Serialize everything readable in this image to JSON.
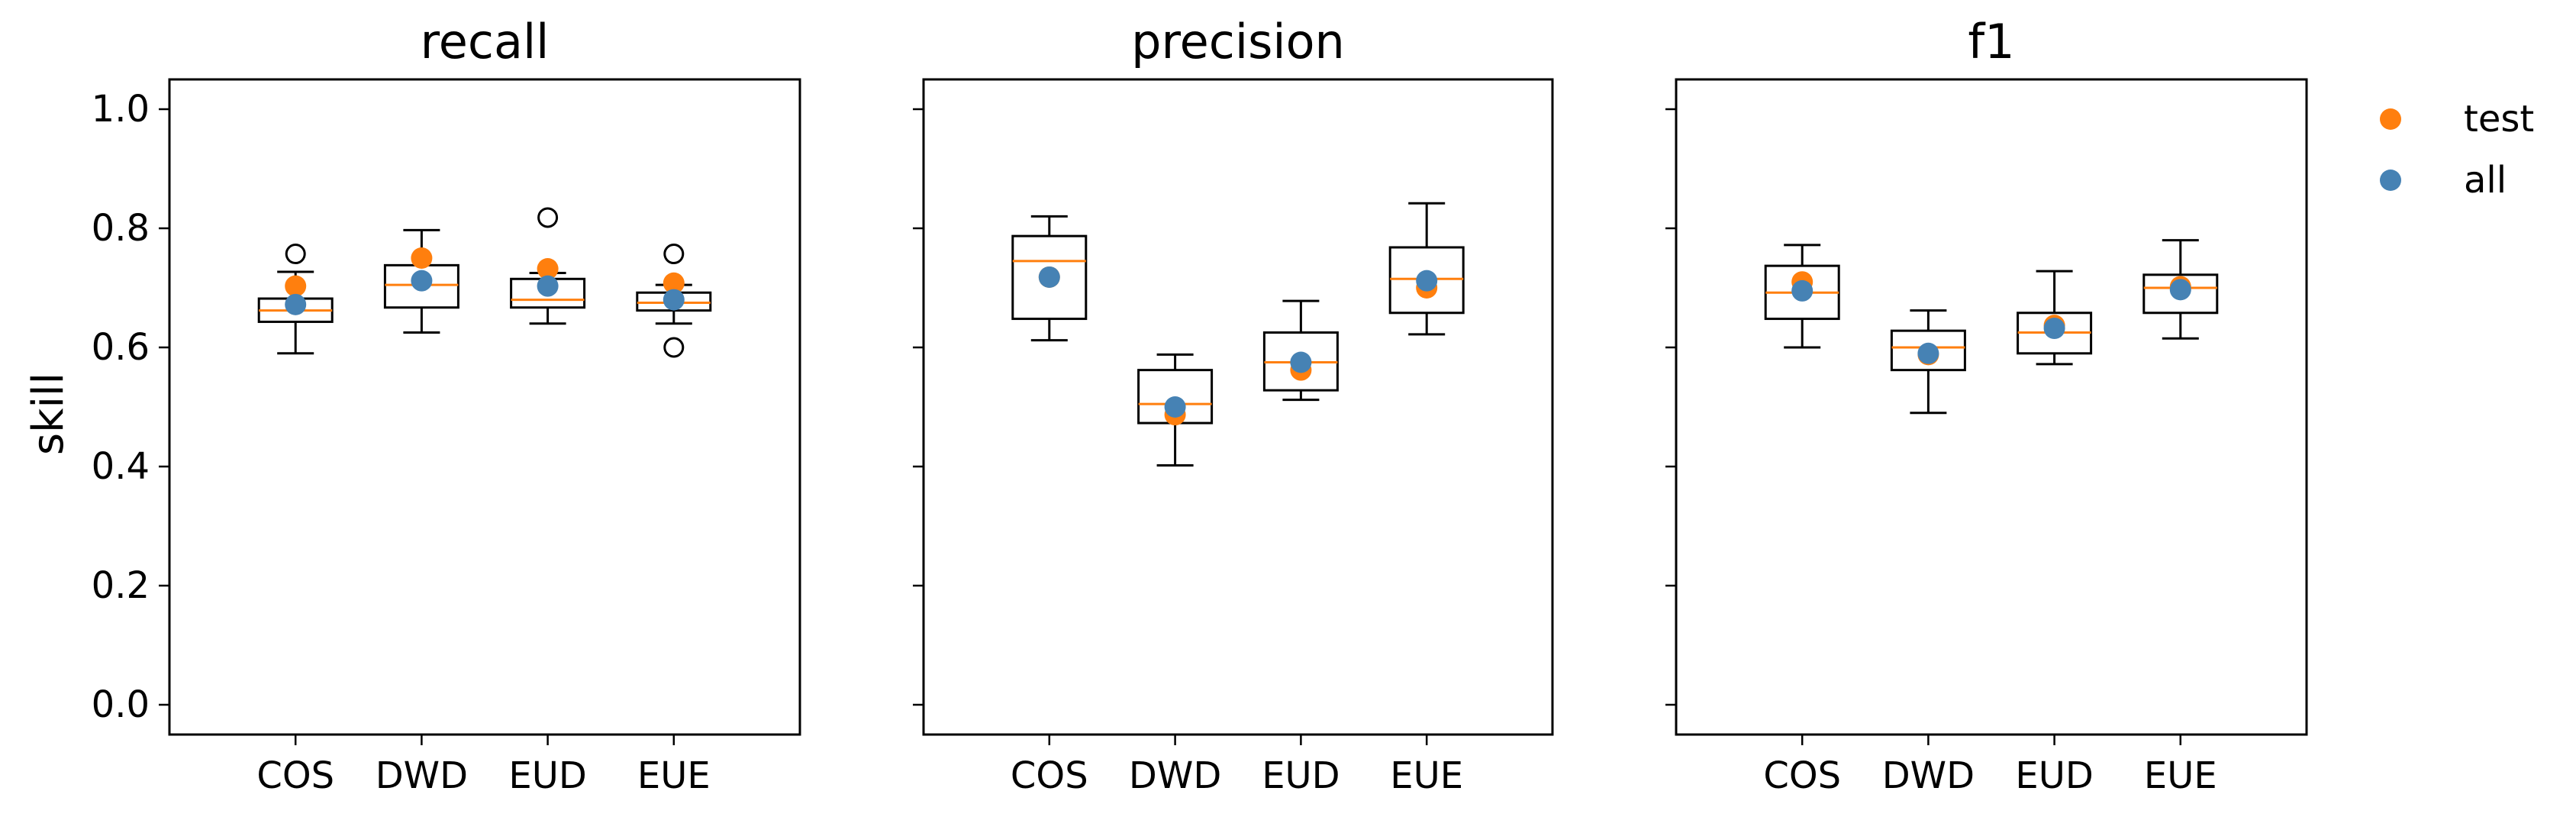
{
  "chart_data": {
    "type": "box",
    "ylabel": "skill",
    "ylim": [
      -0.05,
      1.05
    ],
    "yticks": [
      "0.0",
      "0.2",
      "0.4",
      "0.6",
      "0.8",
      "1.0"
    ],
    "categories": [
      "COS",
      "DWD",
      "EUD",
      "EUE"
    ],
    "legend": {
      "position": "top-right-outside",
      "entries": [
        {
          "name": "test",
          "color": "#ff7f0e"
        },
        {
          "name": "all",
          "color": "#4682b4"
        }
      ]
    },
    "panels": [
      {
        "title": "recall",
        "boxes": [
          {
            "category": "COS",
            "whisker_low": 0.59,
            "q1": 0.643,
            "median": 0.662,
            "q3": 0.682,
            "whisker_high": 0.727,
            "outliers": [
              0.757
            ]
          },
          {
            "category": "DWD",
            "whisker_low": 0.625,
            "q1": 0.667,
            "median": 0.705,
            "q3": 0.738,
            "whisker_high": 0.797,
            "outliers": []
          },
          {
            "category": "EUD",
            "whisker_low": 0.64,
            "q1": 0.667,
            "median": 0.68,
            "q3": 0.715,
            "whisker_high": 0.725,
            "outliers": [
              0.818
            ]
          },
          {
            "category": "EUE",
            "whisker_low": 0.64,
            "q1": 0.662,
            "median": 0.675,
            "q3": 0.692,
            "whisker_high": 0.705,
            "outliers": [
              0.757,
              0.6
            ]
          }
        ],
        "points": {
          "test": [
            0.703,
            0.75,
            0.732,
            0.708
          ],
          "all": [
            0.672,
            0.712,
            0.703,
            0.68
          ]
        }
      },
      {
        "title": "precision",
        "boxes": [
          {
            "category": "COS",
            "whisker_low": 0.612,
            "q1": 0.648,
            "median": 0.745,
            "q3": 0.787,
            "whisker_high": 0.82,
            "outliers": []
          },
          {
            "category": "DWD",
            "whisker_low": 0.402,
            "q1": 0.473,
            "median": 0.505,
            "q3": 0.562,
            "whisker_high": 0.588,
            "outliers": []
          },
          {
            "category": "EUD",
            "whisker_low": 0.512,
            "q1": 0.528,
            "median": 0.575,
            "q3": 0.625,
            "whisker_high": 0.678,
            "outliers": []
          },
          {
            "category": "EUE",
            "whisker_low": 0.622,
            "q1": 0.658,
            "median": 0.715,
            "q3": 0.768,
            "whisker_high": 0.842,
            "outliers": []
          }
        ],
        "points": {
          "test": [
            0.718,
            0.487,
            0.562,
            0.7
          ],
          "all": [
            0.718,
            0.5,
            0.575,
            0.712
          ]
        }
      },
      {
        "title": "f1",
        "boxes": [
          {
            "category": "COS",
            "whisker_low": 0.6,
            "q1": 0.648,
            "median": 0.692,
            "q3": 0.737,
            "whisker_high": 0.772,
            "outliers": []
          },
          {
            "category": "DWD",
            "whisker_low": 0.49,
            "q1": 0.562,
            "median": 0.6,
            "q3": 0.628,
            "whisker_high": 0.662,
            "outliers": []
          },
          {
            "category": "EUD",
            "whisker_low": 0.572,
            "q1": 0.59,
            "median": 0.625,
            "q3": 0.658,
            "whisker_high": 0.728,
            "outliers": []
          },
          {
            "category": "EUE",
            "whisker_low": 0.615,
            "q1": 0.658,
            "median": 0.7,
            "q3": 0.722,
            "whisker_high": 0.78,
            "outliers": []
          }
        ],
        "points": {
          "test": [
            0.71,
            0.588,
            0.637,
            0.702
          ],
          "all": [
            0.695,
            0.59,
            0.632,
            0.697
          ]
        }
      }
    ]
  }
}
